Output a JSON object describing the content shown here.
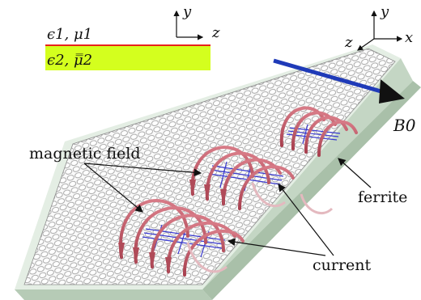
{
  "legend": {
    "upper_medium": "ϵ1, μ1",
    "lower_medium": "ϵ2, μ̿2",
    "upper_color": "#ffffff",
    "lower_color": "#d4ff1e",
    "interface_color": "#e8221a"
  },
  "axes": {
    "small_y": "y",
    "small_z": "z",
    "main_y": "y",
    "main_z": "z",
    "main_x": "x"
  },
  "labels": {
    "bias_field": "B0",
    "magnetic_field": "magnetic field",
    "ferrite": "ferrite",
    "current": "current"
  },
  "colors": {
    "slab_top": "#e6efe6",
    "slab_side": "#c9d8c9",
    "graphene": "#c8c8c8",
    "field_loops": "#c05a68",
    "current": "#3a3ad0",
    "bias_arrow": "#1f3ab8"
  }
}
